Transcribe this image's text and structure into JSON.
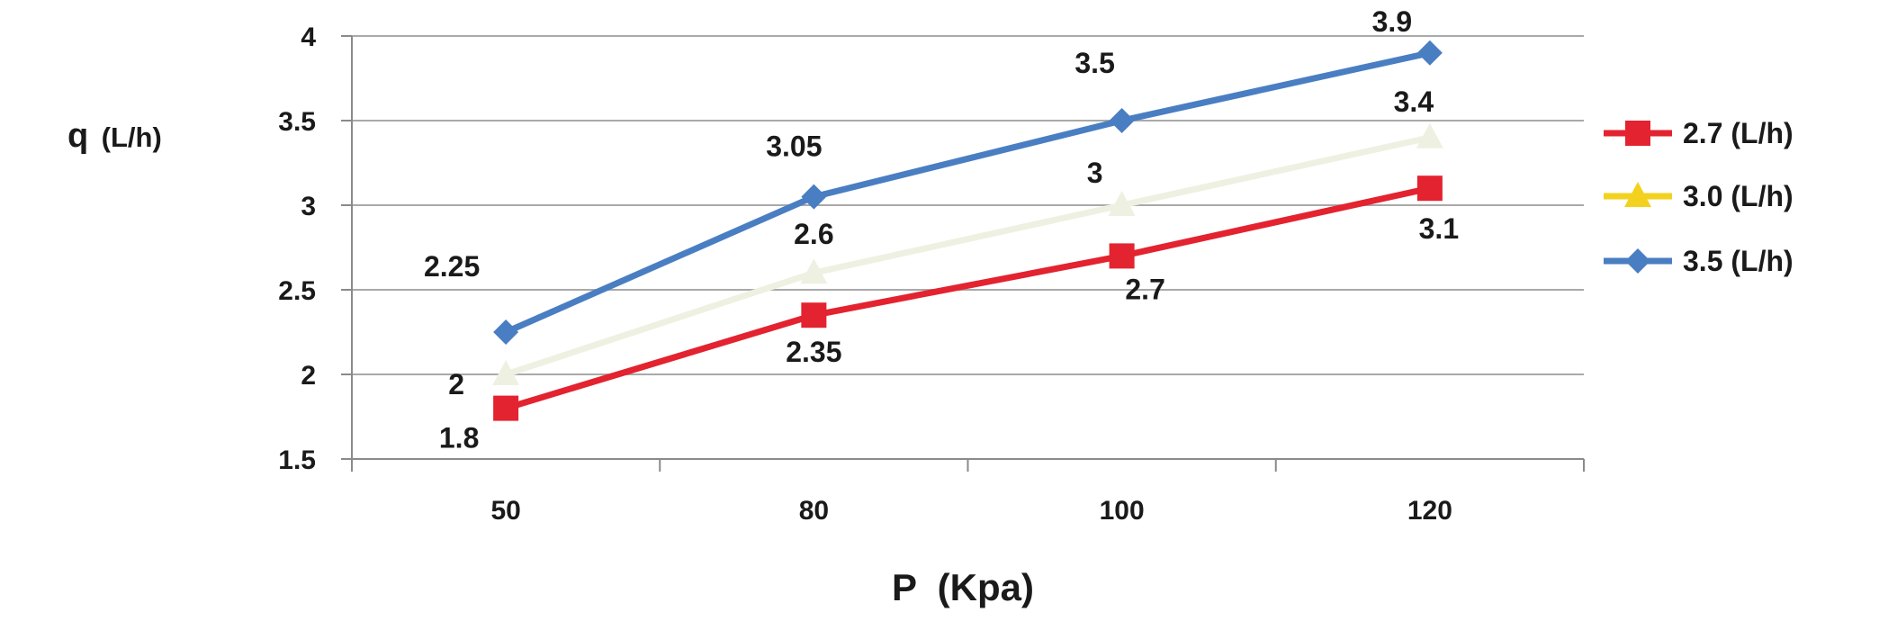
{
  "chart_data": {
    "type": "line",
    "xlabel": "P  (Kpa)",
    "ylabel": "q",
    "ylabel_unit": "(L/h)",
    "categories": [
      "50",
      "80",
      "100",
      "120"
    ],
    "x_tick_labels": [
      "50",
      "80",
      "100",
      "120"
    ],
    "ylim": [
      1.5,
      4
    ],
    "y_tick_labels": [
      "1.5",
      "2",
      "2.5",
      "3",
      "3.5",
      "4"
    ],
    "grid": "horizontal",
    "legend_position": "right",
    "series": [
      {
        "name": "2.7 (L/h)",
        "values": [
          1.8,
          2.35,
          2.7,
          3.1
        ],
        "labels": [
          "1.8",
          "2.35",
          "2.7",
          "3.1"
        ],
        "color": "#e3232f",
        "marker": "square"
      },
      {
        "name": "3.0 (L/h)",
        "values": [
          2.0,
          2.6,
          3.0,
          3.4
        ],
        "labels": [
          "2",
          "2.6",
          "3",
          "3.4"
        ],
        "color": "#eef1e2",
        "legend_color": "#f2d21e",
        "marker": "triangle"
      },
      {
        "name": "3.5 (L/h)",
        "values": [
          2.25,
          3.05,
          3.5,
          3.9
        ],
        "labels": [
          "2.25",
          "3.05",
          "3.5",
          "3.9"
        ],
        "color": "#4a7ec2",
        "marker": "diamond"
      }
    ]
  }
}
